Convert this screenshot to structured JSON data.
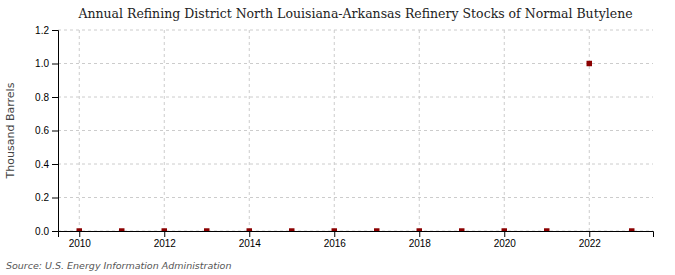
{
  "chart_data": {
    "type": "scatter",
    "title": "Annual Refining District North Louisiana-Arkansas Refinery Stocks of Normal Butylene",
    "ylabel": "Thousand Barrels",
    "annotations": [
      "Source: U.S. Energy Information Administration"
    ],
    "x": [
      2010,
      2011,
      2012,
      2013,
      2014,
      2015,
      2016,
      2017,
      2018,
      2019,
      2020,
      2021,
      2022,
      2023
    ],
    "values": [
      0,
      0,
      0,
      0,
      0,
      0,
      0,
      0,
      0,
      0,
      0,
      0,
      1.0,
      0
    ],
    "color": "#8b0000",
    "marker": "square",
    "xlim": [
      2009.5,
      2023.5
    ],
    "xticks": [
      2010,
      2012,
      2014,
      2016,
      2018,
      2020,
      2022
    ],
    "ylim": [
      0,
      1.2
    ],
    "yticks": [
      {
        "value": 0.0,
        "label": "0.0"
      },
      {
        "value": 0.2,
        "label": "0.2"
      },
      {
        "value": 0.4,
        "label": "0.4"
      },
      {
        "value": 0.6,
        "label": "0.6"
      },
      {
        "value": 0.8,
        "label": "0.8"
      },
      {
        "value": 1.0,
        "label": "1.0"
      },
      {
        "value": 1.2,
        "label": "1.2"
      }
    ],
    "grid": true
  }
}
